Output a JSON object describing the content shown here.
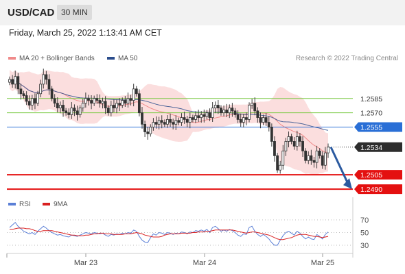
{
  "header": {
    "symbol": "USD/CAD",
    "timeframe": "30 MIN"
  },
  "datetime": "Friday, March 25, 2022 1:13:41 AM CET",
  "legend": {
    "ma_bb": {
      "label": "MA 20 + Bollinger Bands",
      "color": "#f08a8a"
    },
    "ma50": {
      "label": "MA 50",
      "color": "#2b4d8c"
    }
  },
  "credit": "Research © 2022 Trading Central",
  "rsi_legend": {
    "rsi": {
      "label": "RSI",
      "color": "#5b7fd6"
    },
    "ma9": {
      "label": "9MA",
      "color": "#d92020"
    }
  },
  "chart_data": [
    {
      "type": "candlestick",
      "title": "USD/CAD 30 MIN",
      "x_ticks": [
        "Mar 23",
        "Mar 24",
        "Mar 25"
      ],
      "ylim": [
        1.248,
        1.262
      ],
      "levels": [
        {
          "value": "1.2585",
          "kind": "resistance",
          "color": "#7ac943"
        },
        {
          "value": "1.2570",
          "kind": "resistance",
          "color": "#7ac943"
        },
        {
          "value": "1.2555",
          "kind": "pivot",
          "color": "#2a6fd6"
        },
        {
          "value": "1.2534",
          "kind": "last",
          "color": "#333333"
        },
        {
          "value": "1.2505",
          "kind": "support",
          "color": "#e41010"
        },
        {
          "value": "1.2490",
          "kind": "support",
          "color": "#e41010"
        }
      ],
      "closes": [
        1.2605,
        1.26,
        1.2608,
        1.2595,
        1.259,
        1.2588,
        1.2582,
        1.2578,
        1.2585,
        1.258,
        1.259,
        1.26,
        1.261,
        1.2605,
        1.2595,
        1.2585,
        1.258,
        1.2575,
        1.2578,
        1.2572,
        1.257,
        1.2568,
        1.2575,
        1.2572,
        1.2568,
        1.2575,
        1.258,
        1.2585,
        1.2583,
        1.258,
        1.2585,
        1.2583,
        1.258,
        1.2582,
        1.2575,
        1.257,
        1.2578,
        1.2575,
        1.258,
        1.2578,
        1.2583,
        1.258,
        1.2585,
        1.2583,
        1.2595,
        1.259,
        1.257,
        1.2558,
        1.255,
        1.2548,
        1.2555,
        1.256,
        1.2558,
        1.2562,
        1.256,
        1.2558,
        1.2563,
        1.256,
        1.2558,
        1.2562,
        1.256,
        1.2565,
        1.2563,
        1.256,
        1.2565,
        1.2563,
        1.2567,
        1.2565,
        1.2568,
        1.2566,
        1.257,
        1.2565,
        1.2575,
        1.2578,
        1.2575,
        1.257,
        1.2573,
        1.257,
        1.2575,
        1.2572,
        1.2568,
        1.2563,
        1.256,
        1.2565,
        1.2563,
        1.2578,
        1.258,
        1.2572,
        1.2565,
        1.256,
        1.2565,
        1.256,
        1.2555,
        1.254,
        1.2525,
        1.251,
        1.2515,
        1.253,
        1.254,
        1.2545,
        1.254,
        1.2535,
        1.2545,
        1.254,
        1.253,
        1.252,
        1.2525,
        1.252,
        1.2518,
        1.253,
        1.2525,
        1.2515,
        1.2528,
        1.2534
      ],
      "projection": {
        "from": 1.2534,
        "to": 1.249
      }
    },
    {
      "type": "line",
      "title": "RSI",
      "series": [
        {
          "name": "RSI",
          "color": "#5b7fd6"
        },
        {
          "name": "9MA",
          "color": "#d92020"
        }
      ],
      "y_ticks": [
        "70",
        "50",
        "30"
      ],
      "rsi": [
        58,
        62,
        66,
        60,
        56,
        52,
        50,
        48,
        50,
        47,
        52,
        56,
        60,
        57,
        53,
        50,
        48,
        46,
        47,
        45,
        44,
        43,
        46,
        45,
        44,
        46,
        48,
        50,
        49,
        48,
        50,
        49,
        48,
        49,
        46,
        44,
        47,
        46,
        48,
        47,
        49,
        48,
        50,
        49,
        54,
        52,
        44,
        38,
        35,
        34,
        42,
        48,
        46,
        50,
        49,
        47,
        50,
        49,
        47,
        49,
        48,
        51,
        50,
        48,
        51,
        50,
        53,
        52,
        54,
        52,
        55,
        50,
        58,
        60,
        56,
        52,
        54,
        52,
        55,
        53,
        50,
        46,
        44,
        48,
        47,
        58,
        60,
        52,
        47,
        44,
        47,
        44,
        40,
        34,
        30,
        30,
        38,
        45,
        50,
        52,
        49,
        46,
        52,
        49,
        44,
        40,
        43,
        40,
        39,
        47,
        44,
        40,
        47,
        51
      ],
      "ma9": [
        55,
        55,
        56,
        57,
        57,
        57,
        56,
        56,
        55,
        53,
        52,
        52,
        53,
        53,
        53,
        53,
        52,
        51,
        50,
        49,
        48,
        47,
        46,
        46,
        45,
        45,
        45,
        46,
        46,
        47,
        48,
        48,
        49,
        49,
        48,
        48,
        48,
        47,
        47,
        47,
        47,
        48,
        48,
        48,
        49,
        50,
        49,
        48,
        46,
        45,
        44,
        43,
        43,
        43,
        44,
        46,
        47,
        48,
        48,
        48,
        48,
        49,
        49,
        49,
        49,
        50,
        50,
        51,
        51,
        51,
        52,
        52,
        53,
        54,
        54,
        54,
        54,
        54,
        54,
        54,
        53,
        52,
        51,
        50,
        49,
        50,
        51,
        51,
        50,
        49,
        48,
        47,
        46,
        44,
        42,
        40,
        39,
        39,
        40,
        41,
        42,
        44,
        46,
        47,
        47,
        47,
        46,
        45,
        44,
        44,
        43,
        42,
        43,
        44
      ]
    }
  ]
}
